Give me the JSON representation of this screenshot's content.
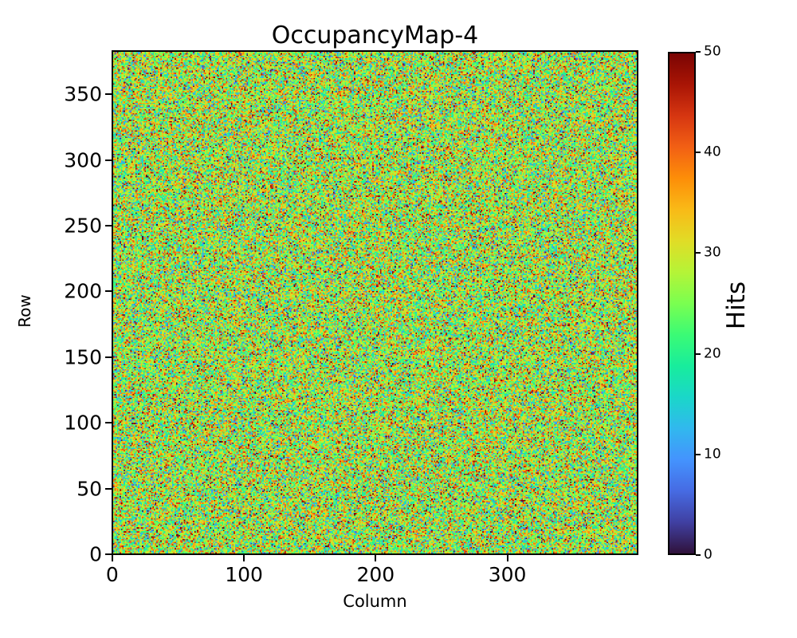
{
  "figure": {
    "background": "#ffffff",
    "text_color": "#000000",
    "axis_color": "#000000"
  },
  "chart_data": {
    "type": "heatmap",
    "title": "OccupancyMap-4",
    "xlabel": "Column",
    "ylabel": "Row",
    "colorbar_label": "Hits",
    "n_cols": 400,
    "n_rows": 384,
    "x_range": [
      0,
      400
    ],
    "y_range": [
      0,
      384
    ],
    "x_ticks": [
      0,
      100,
      200,
      300
    ],
    "y_ticks": [
      0,
      50,
      100,
      150,
      200,
      250,
      300,
      350
    ],
    "colorbar_ticks": [
      0,
      10,
      20,
      30,
      40,
      50
    ],
    "value_range": [
      0,
      50
    ],
    "origin": "lower",
    "grid": false,
    "legend": "none (colorbar on right)",
    "values_summary": {
      "description": "per-pixel random hit counts; dense uncorrelated noise across the full map",
      "distribution": "gaussian",
      "mean": 27,
      "sigma": 10,
      "clip": [
        0,
        50
      ],
      "seed": 4
    },
    "colormap": {
      "name": "turbo",
      "stops": [
        "#30123b",
        "#4040a2",
        "#466be3",
        "#4493fe",
        "#31b8ee",
        "#1ad7c9",
        "#18ed9c",
        "#3bfb75",
        "#7aff50",
        "#b5f437",
        "#e1dc26",
        "#f9ba17",
        "#fd8e08",
        "#f26014",
        "#d63611",
        "#a91505",
        "#7a0403"
      ]
    }
  }
}
